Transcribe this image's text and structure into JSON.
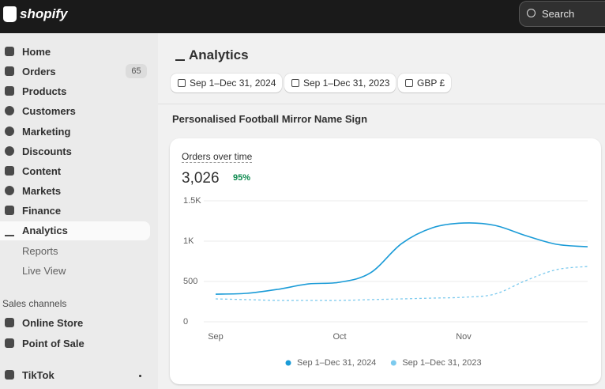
{
  "topbar": {
    "logo": "shopify",
    "search": "Search"
  },
  "sidebar": {
    "items": [
      "Home",
      "Orders",
      "Products",
      "Customers",
      "Marketing",
      "Discounts",
      "Content",
      "Markets",
      "Finance",
      "Analytics"
    ],
    "orders_badge": "65",
    "subitems": [
      "Reports",
      "Live View"
    ],
    "sales_channels": {
      "title": "Sales channels",
      "items": [
        "Online Store",
        "Point of Sale"
      ]
    },
    "apps": [
      "TikTok"
    ]
  },
  "header": {
    "title": "Analytics",
    "filters": [
      "Sep 1–Dec 31, 2024",
      "Sep 1–Dec 31, 2023",
      "GBP £"
    ]
  },
  "section_title": "Personalised Football Mirror Name Sign",
  "card": {
    "kpi": "3,026",
    "change": "95%"
  },
  "chart_data": {
    "type": "line",
    "title": "Orders over time",
    "categories": [
      "Sep",
      null,
      null,
      null,
      "Oct",
      null,
      null,
      null,
      "Nov",
      null,
      null,
      null,
      null
    ],
    "series": [
      {
        "name": "Sep 1–Dec 31, 2024",
        "color": "#1a9bd7",
        "dashed": false,
        "values": [
          343,
          353,
          402,
          470,
          490,
          608,
          970,
          1167,
          1225,
          1196,
          1069,
          961,
          931
        ]
      },
      {
        "name": "Sep 1–Dec 31, 2023",
        "color": "#7ccaee",
        "dashed": true,
        "values": [
          284,
          275,
          265,
          265,
          265,
          275,
          284,
          294,
          304,
          343,
          510,
          647,
          686
        ]
      }
    ],
    "ylim": [
      0,
      1500
    ],
    "yticks": [
      0,
      500,
      {
        "value": 1000,
        "label": "1K"
      },
      {
        "value": 1500,
        "label": "1.5K"
      }
    ],
    "grid": true
  }
}
